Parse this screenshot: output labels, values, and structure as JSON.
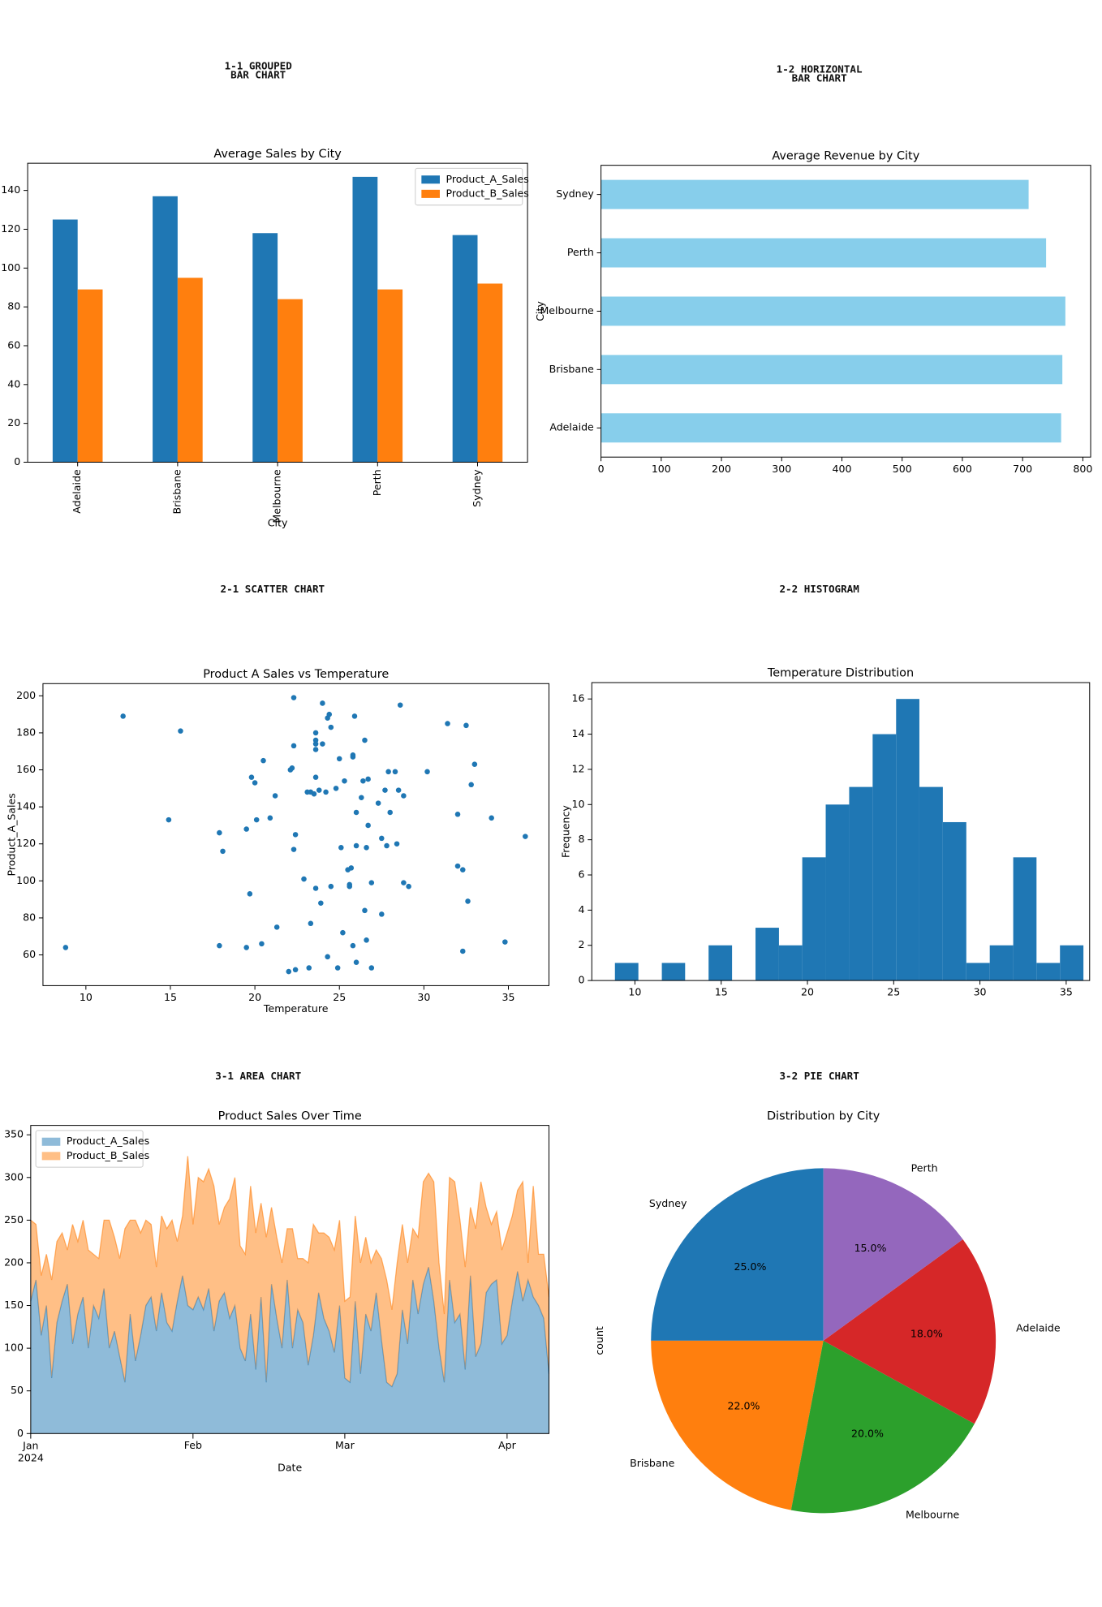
{
  "headings": [
    "1-1 GROUPED\nBAR CHART",
    "1-2 HORIZONTAL\nBAR CHART",
    "2-1 SCATTER CHART",
    "2-2 HISTOGRAM",
    "3-1 AREA CHART",
    "3-2 PIE CHART"
  ],
  "chart_data": [
    {
      "type": "bar",
      "title": "Average Sales by City",
      "xlabel": "City",
      "categories": [
        "Adelaide",
        "Brisbane",
        "Melbourne",
        "Perth",
        "Sydney"
      ],
      "series": [
        {
          "name": "Product_A_Sales",
          "color": "#1f77b4",
          "values": [
            125,
            137,
            118,
            147,
            117
          ]
        },
        {
          "name": "Product_B_Sales",
          "color": "#ff7f0e",
          "values": [
            89,
            95,
            84,
            89,
            92
          ]
        }
      ],
      "ylim": [
        0,
        154
      ],
      "yticks": [
        0,
        20,
        40,
        60,
        80,
        100,
        120,
        140
      ],
      "legend": "upper right"
    },
    {
      "type": "hbar",
      "title": "Average Revenue by City",
      "ylabel": "City",
      "categories": [
        "Adelaide",
        "Brisbane",
        "Melbourne",
        "Perth",
        "Sydney"
      ],
      "values": [
        764,
        766,
        771,
        739,
        710
      ],
      "color": "#87ceeb",
      "xlim": [
        0,
        813
      ],
      "xticks": [
        0,
        100,
        200,
        300,
        400,
        500,
        600,
        700,
        800
      ]
    },
    {
      "type": "scatter",
      "title": "Product A Sales vs Temperature",
      "xlabel": "Temperature",
      "ylabel": "Product_A_Sales",
      "color": "#1f77b4",
      "x": [
        8.8,
        12.2,
        14.9,
        15.6,
        17.9,
        18.1,
        17.9,
        19.5,
        19.7,
        19.8,
        20.0,
        20.1,
        19.5,
        20.4,
        20.5,
        20.9,
        21.2,
        21.3,
        22.0,
        22.1,
        22.2,
        22.3,
        22.3,
        22.4,
        22.3,
        22.4,
        22.9,
        23.1,
        23.3,
        23.2,
        23.3,
        23.6,
        23.6,
        23.6,
        23.6,
        23.6,
        23.5,
        23.6,
        23.8,
        23.9,
        24.0,
        24.0,
        24.2,
        24.3,
        24.4,
        24.3,
        24.5,
        24.5,
        24.8,
        24.9,
        25.0,
        25.1,
        25.2,
        25.3,
        25.5,
        25.6,
        25.6,
        25.7,
        25.8,
        25.8,
        25.8,
        25.9,
        26.0,
        26.0,
        26.0,
        26.3,
        26.4,
        26.5,
        26.5,
        26.7,
        26.6,
        26.6,
        26.7,
        26.9,
        26.9,
        27.3,
        27.5,
        27.5,
        27.7,
        27.8,
        27.9,
        28.0,
        28.3,
        28.4,
        28.6,
        28.5,
        28.8,
        28.8,
        29.1,
        30.2,
        31.4,
        32.0,
        32.0,
        32.3,
        32.3,
        32.5,
        32.6,
        32.8,
        33.0,
        34.0,
        34.8,
        36.0
      ],
      "values": [
        64,
        189,
        133,
        181,
        126,
        116,
        65,
        128,
        93,
        156,
        153,
        133,
        64,
        66,
        165,
        134,
        146,
        75,
        51,
        160,
        161,
        173,
        199,
        125,
        117,
        52,
        101,
        148,
        148,
        53,
        77,
        174,
        180,
        176,
        171,
        156,
        147,
        96,
        149,
        88,
        196,
        174,
        148,
        188,
        190,
        59,
        97,
        183,
        150,
        53,
        166,
        118,
        72,
        154,
        106,
        98,
        97,
        107,
        167,
        168,
        65,
        189,
        137,
        119,
        56,
        145,
        154,
        176,
        84,
        155,
        118,
        68,
        130,
        53,
        99,
        142,
        123,
        82,
        149,
        119,
        159,
        137,
        159,
        120,
        195,
        149,
        146,
        99,
        97,
        159,
        185,
        136,
        108,
        106,
        62,
        184,
        89,
        152,
        163,
        134,
        67,
        124
      ],
      "xlim": [
        7.46,
        37.4
      ],
      "xticks": [
        10,
        15,
        20,
        25,
        30,
        35
      ],
      "ylim": [
        43.4,
        206.6
      ],
      "yticks": [
        60,
        80,
        100,
        120,
        140,
        160,
        180,
        200
      ]
    },
    {
      "type": "histogram",
      "title": "Temperature Distribution",
      "ylabel": "Frequency",
      "color": "#1f77b4",
      "bins": [
        8.84,
        10.2,
        11.56,
        12.91,
        14.27,
        15.63,
        16.99,
        18.35,
        19.7,
        21.06,
        22.42,
        23.78,
        25.14,
        26.49,
        27.85,
        29.21,
        30.57,
        31.93,
        33.28,
        34.64,
        36.0
      ],
      "values": [
        1,
        0,
        1,
        0,
        2,
        0,
        3,
        2,
        7,
        10,
        11,
        14,
        16,
        11,
        9,
        1,
        2,
        7,
        1,
        2
      ],
      "xlim": [
        7.5,
        36.36
      ],
      "xticks": [
        10,
        15,
        20,
        25,
        30,
        35
      ],
      "ylim": [
        0,
        16.93
      ],
      "yticks": [
        0,
        2,
        4,
        6,
        8,
        10,
        12,
        14,
        16
      ]
    },
    {
      "type": "area",
      "title": "Product Sales Over Time",
      "xlabel": "Date",
      "legend": "upper left",
      "categories": [
        "Jan\n2024",
        null,
        null,
        null,
        null,
        null,
        null,
        null,
        null,
        null,
        null,
        null,
        null,
        null,
        null,
        null,
        null,
        null,
        null,
        null,
        null,
        null,
        null,
        null,
        null,
        null,
        null,
        null,
        null,
        null,
        null,
        "Feb",
        null,
        null,
        null,
        null,
        null,
        null,
        null,
        null,
        null,
        null,
        null,
        null,
        null,
        null,
        null,
        null,
        null,
        null,
        null,
        null,
        null,
        null,
        null,
        null,
        null,
        null,
        null,
        null,
        "Mar",
        null,
        null,
        null,
        null,
        null,
        null,
        null,
        null,
        null,
        null,
        null,
        null,
        null,
        null,
        null,
        null,
        null,
        null,
        null,
        null,
        null,
        null,
        null,
        null,
        null,
        null,
        null,
        null,
        null,
        null,
        "Apr",
        null,
        null,
        null,
        null,
        null,
        null,
        null,
        null
      ],
      "series": [
        {
          "name": "Product_A_Sales",
          "color": "#1f77b4",
          "values": [
            155,
            180,
            115,
            150,
            65,
            130,
            155,
            175,
            105,
            140,
            160,
            100,
            150,
            135,
            170,
            100,
            120,
            90,
            60,
            140,
            85,
            115,
            150,
            160,
            120,
            165,
            130,
            120,
            155,
            185,
            150,
            145,
            160,
            145,
            170,
            120,
            155,
            165,
            135,
            150,
            100,
            85,
            140,
            75,
            160,
            60,
            175,
            135,
            100,
            180,
            100,
            145,
            130,
            80,
            115,
            165,
            135,
            120,
            95,
            150,
            65,
            60,
            155,
            70,
            140,
            120,
            165,
            110,
            60,
            55,
            70,
            145,
            105,
            180,
            140,
            175,
            195,
            155,
            100,
            60,
            180,
            130,
            140,
            75,
            185,
            90,
            105,
            165,
            175,
            180,
            105,
            115,
            155,
            190,
            155,
            180,
            160,
            150,
            135,
            70
          ]
        },
        {
          "name": "Product_B_Sales",
          "color": "#ff7f0e",
          "values": [
            95,
            65,
            70,
            60,
            115,
            95,
            80,
            40,
            140,
            85,
            90,
            115,
            60,
            70,
            80,
            150,
            110,
            115,
            180,
            110,
            165,
            120,
            100,
            85,
            75,
            90,
            110,
            130,
            70,
            70,
            175,
            100,
            140,
            150,
            140,
            170,
            90,
            100,
            140,
            150,
            120,
            125,
            150,
            160,
            110,
            170,
            90,
            95,
            100,
            60,
            140,
            60,
            75,
            120,
            130,
            70,
            100,
            110,
            120,
            100,
            90,
            100,
            100,
            130,
            90,
            80,
            50,
            95,
            120,
            90,
            130,
            100,
            95,
            60,
            90,
            120,
            110,
            140,
            100,
            80,
            120,
            165,
            110,
            120,
            80,
            150,
            190,
            100,
            70,
            80,
            110,
            120,
            100,
            95,
            140,
            20,
            130,
            60,
            75,
            90
          ]
        }
      ],
      "ylim": [
        0,
        361
      ],
      "yticks": [
        0,
        50,
        100,
        150,
        200,
        250,
        300,
        350
      ]
    },
    {
      "type": "pie",
      "title": "Distribution by City",
      "ylabel": "count",
      "categories": [
        "Sydney",
        "Brisbane",
        "Melbourne",
        "Adelaide",
        "Perth"
      ],
      "values": [
        25,
        22,
        20,
        18,
        15
      ],
      "value_labels": [
        "25.0%",
        "22.0%",
        "20.0%",
        "18.0%",
        "15.0%"
      ],
      "colors": [
        "#1f77b4",
        "#ff7f0e",
        "#2ca02c",
        "#d62728",
        "#9467bd"
      ]
    }
  ]
}
